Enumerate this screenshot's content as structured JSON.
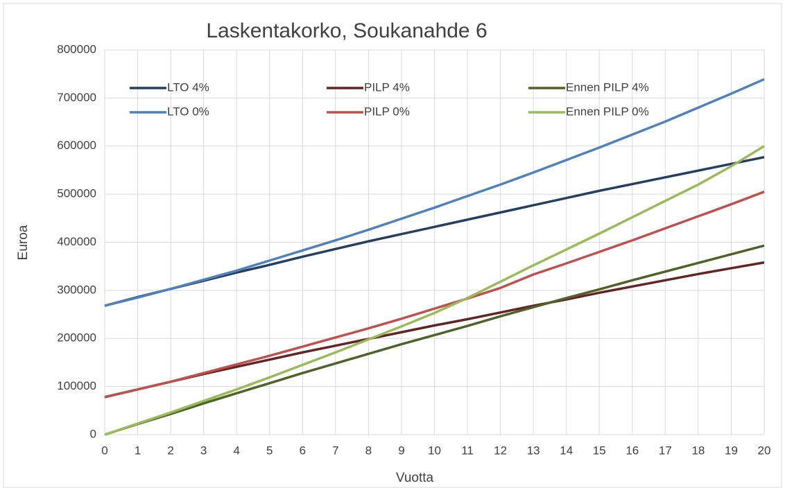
{
  "chart_data": {
    "type": "line",
    "title": "Laskentakorko, Soukanahde 6",
    "xlabel": "Vuotta",
    "ylabel": "Euroa",
    "x": [
      0,
      1,
      2,
      3,
      4,
      5,
      6,
      7,
      8,
      9,
      10,
      11,
      12,
      13,
      14,
      15,
      16,
      17,
      18,
      19,
      20
    ],
    "xlim": [
      0,
      20
    ],
    "xticks": [
      0,
      1,
      2,
      3,
      4,
      5,
      6,
      7,
      8,
      9,
      10,
      11,
      12,
      13,
      14,
      15,
      16,
      17,
      18,
      19,
      20
    ],
    "ylim": [
      0,
      800000
    ],
    "yticks": [
      0,
      100000,
      200000,
      300000,
      400000,
      500000,
      600000,
      700000,
      800000
    ],
    "grid": true,
    "legend": "top",
    "series": [
      {
        "name": "LTO 4%",
        "color": "#243f60",
        "values": [
          268000,
          286000,
          303000,
          320000,
          337000,
          353000,
          370000,
          386000,
          402000,
          417000,
          432000,
          447000,
          462000,
          477000,
          492000,
          507000,
          521000,
          535000,
          549000,
          563000,
          577000
        ]
      },
      {
        "name": "PILP  4%",
        "color": "#632523",
        "values": [
          78000,
          94000,
          110000,
          126000,
          141000,
          156000,
          171000,
          185000,
          199000,
          213000,
          227000,
          240000,
          254000,
          268000,
          281000,
          295000,
          308000,
          321000,
          334000,
          346000,
          358000
        ]
      },
      {
        "name": "Ennen PILP  4%",
        "color": "#4f6228",
        "values": [
          0,
          22000,
          43000,
          65000,
          86000,
          107000,
          128000,
          148000,
          168000,
          188000,
          207000,
          226000,
          246000,
          265000,
          284000,
          302000,
          321000,
          339000,
          357000,
          375000,
          393000
        ]
      },
      {
        "name": "LTO 0%",
        "color": "#4f81bd",
        "values": [
          268000,
          285000,
          303000,
          322000,
          341000,
          362000,
          383000,
          404000,
          426000,
          449000,
          472000,
          496000,
          520000,
          545000,
          571000,
          597000,
          624000,
          651000,
          680000,
          709000,
          739000
        ]
      },
      {
        "name": "PILP 0%",
        "color": "#c0504d",
        "values": [
          78000,
          94000,
          110000,
          128000,
          146000,
          164000,
          183000,
          202000,
          221000,
          241000,
          262000,
          283000,
          305000,
          333000,
          356000,
          380000,
          404000,
          429000,
          454000,
          479000,
          505000
        ]
      },
      {
        "name": "Ennen PILP 0%",
        "color": "#9bbb59",
        "values": [
          0,
          23000,
          46000,
          70000,
          94000,
          119000,
          145000,
          171000,
          198000,
          225000,
          253000,
          284000,
          318000,
          352000,
          385000,
          418000,
          452000,
          486000,
          520000,
          558000,
          600000
        ]
      }
    ]
  }
}
